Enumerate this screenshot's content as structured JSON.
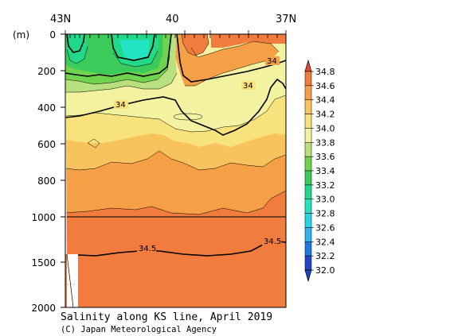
{
  "chart_data": {
    "type": "contour",
    "title": "Salinity along KS line, April 2019",
    "credit": "(C) Japan Meteorological Agency",
    "y_unit": "(m)",
    "x_ticks": [
      "43N",
      "40",
      "37N"
    ],
    "y_ticks": [
      "0",
      "200",
      "400",
      "600",
      "800",
      "1000",
      "1500",
      "2000"
    ],
    "y_axis_break_depth": 1000,
    "ylim": [
      0,
      2000
    ],
    "colorbar": {
      "levels": [
        "32.0",
        "32.2",
        "32.4",
        "32.6",
        "32.8",
        "33.0",
        "33.2",
        "33.4",
        "33.6",
        "33.8",
        "34.0",
        "34.2",
        "34.4",
        "34.6",
        "34.8"
      ],
      "colors": [
        "#2242c8",
        "#1f7ae0",
        "#2fb4ef",
        "#27d5e8",
        "#22e3c2",
        "#22d98a",
        "#3acb5a",
        "#6fd34f",
        "#b9e07e",
        "#f2f2a0",
        "#f8e27c",
        "#f8c35d",
        "#f5a046",
        "#f27b3e",
        "#e9492e"
      ]
    },
    "contour_labels": [
      "34",
      "34",
      "34",
      "34.5",
      "34.5"
    ],
    "annotations": {
      "contour_34": "34",
      "contour_345": "34.5"
    }
  }
}
